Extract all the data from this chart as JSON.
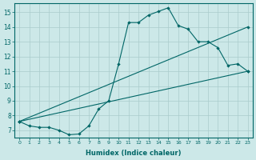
{
  "background_color": "#cce8e8",
  "grid_color": "#aacccc",
  "line_color": "#006666",
  "xlabel": "Humidex (Indice chaleur)",
  "xlim": [
    -0.5,
    23.5
  ],
  "ylim": [
    6.5,
    15.6
  ],
  "yticks": [
    7,
    8,
    9,
    10,
    11,
    12,
    13,
    14,
    15
  ],
  "xticks": [
    0,
    1,
    2,
    3,
    4,
    5,
    6,
    7,
    8,
    9,
    10,
    11,
    12,
    13,
    14,
    15,
    16,
    17,
    18,
    19,
    20,
    21,
    22,
    23
  ],
  "series": [
    {
      "x": [
        0,
        1,
        2,
        3,
        4,
        5,
        6,
        7,
        8,
        9,
        10,
        11,
        12,
        13,
        14,
        15,
        16,
        17,
        18,
        19,
        20,
        21,
        22,
        23
      ],
      "y": [
        7.6,
        7.3,
        7.2,
        7.2,
        7.0,
        6.7,
        6.75,
        7.3,
        8.45,
        9.0,
        11.5,
        14.3,
        14.3,
        14.8,
        15.05,
        15.3,
        14.1,
        13.85,
        13.0,
        13.0,
        12.6,
        11.4,
        11.5,
        11.0
      ]
    },
    {
      "x": [
        0,
        23
      ],
      "y": [
        7.6,
        14.0
      ]
    },
    {
      "x": [
        0,
        23
      ],
      "y": [
        7.6,
        11.0
      ]
    }
  ],
  "marker_series": [
    [
      0,
      1,
      2,
      3,
      4,
      5,
      6,
      7,
      8,
      9,
      10,
      11,
      12,
      13,
      14,
      15,
      16,
      17,
      18,
      19,
      20,
      21,
      22,
      23
    ],
    [
      0,
      23
    ],
    [
      0,
      23
    ]
  ]
}
